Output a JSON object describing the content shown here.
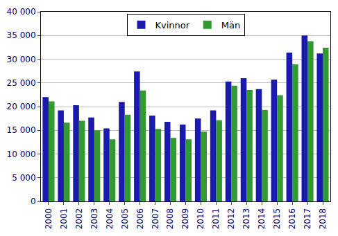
{
  "chart_data": {
    "type": "bar",
    "categories": [
      "2000",
      "2001",
      "2002",
      "2003",
      "2004",
      "2005",
      "2006",
      "2007",
      "2008",
      "2009",
      "2010",
      "2011",
      "2012",
      "2013",
      "2014",
      "2015",
      "2016",
      "2017",
      "2018"
    ],
    "series": [
      {
        "name": "Kvinnor",
        "color": "#1a1aad",
        "values": [
          22000,
          19200,
          20300,
          17700,
          15400,
          21000,
          27400,
          18100,
          16800,
          16200,
          17500,
          19200,
          25300,
          26000,
          23700,
          25700,
          31400,
          35000,
          31200
        ]
      },
      {
        "name": "Män",
        "color": "#339933",
        "values": [
          21100,
          16600,
          17000,
          15000,
          13100,
          18300,
          23400,
          15300,
          13400,
          13100,
          14700,
          17100,
          24400,
          23500,
          19300,
          22400,
          28900,
          33800,
          32400
        ]
      }
    ],
    "ylim": [
      0,
      40000
    ],
    "yticks": [
      0,
      {
        "value": 5000,
        "label": "5 000"
      },
      {
        "value": 10000,
        "label": "10 000"
      },
      {
        "value": 15000,
        "label": "15 000"
      },
      {
        "value": 20000,
        "label": "20 000"
      },
      {
        "value": 25000,
        "label": "25 000"
      },
      {
        "value": 30000,
        "label": "30 000"
      },
      {
        "value": 35000,
        "label": "35 000"
      },
      {
        "value": 40000,
        "label": "40 000"
      }
    ],
    "grid": true,
    "legend": "top"
  }
}
